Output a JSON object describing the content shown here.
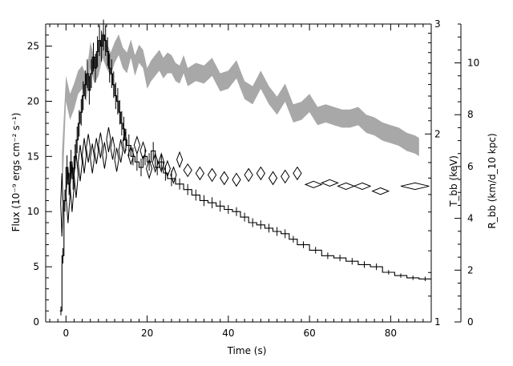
{
  "chart_data": {
    "type": "line",
    "xlabel": "Time (s)",
    "ylabel_left": "Flux (10⁻⁹ ergs cm⁻² s⁻¹)",
    "ylabel_right_1": "T_bb (keV)",
    "ylabel_right_2": "R_bb (km/d_10 kpc)",
    "axes": {
      "x": {
        "lim": [
          -5,
          90
        ],
        "ticks": [
          0,
          20,
          40,
          60,
          80
        ],
        "minor_step": 2
      },
      "y_flux": {
        "lim": [
          0,
          27
        ],
        "ticks": [
          0,
          5,
          10,
          15,
          20,
          25
        ],
        "minor_step": 1
      },
      "y_kT": {
        "lim": [
          1,
          3
        ],
        "ticks": [
          1,
          2,
          3
        ],
        "scale": "log"
      },
      "y_R": {
        "lim": [
          0,
          11.5
        ],
        "ticks": [
          0,
          2,
          4,
          6,
          8,
          10
        ],
        "minor_step": 0.5
      }
    },
    "series": [
      {
        "display": "stepped histogram with vertical error bars",
        "axis": "flux",
        "x": [
          -1.5,
          -1.0,
          -0.5,
          0.0,
          0.5,
          1.0,
          1.5,
          2.0,
          2.5,
          3.0,
          3.5,
          4.0,
          4.5,
          5.0,
          5.5,
          6.0,
          6.5,
          7.0,
          7.5,
          8.0,
          8.5,
          9.0,
          9.5,
          10.0,
          10.5,
          11.0,
          11.5,
          12.0,
          12.5,
          13.0,
          13.5,
          14.0,
          14.5,
          15.0,
          16.0,
          17.0,
          18.0,
          19.0,
          20.0,
          21.0,
          22.0,
          23.0,
          24.0,
          25.0,
          27.0,
          29.0,
          31.0,
          33.0,
          35.0,
          37.0,
          39.0,
          41.0,
          43.0,
          45.0,
          47.0,
          49.0,
          51.0,
          53.0,
          55.0,
          57.0,
          60.0,
          63.0,
          66.0,
          69.0,
          72.0,
          75.0,
          78.0,
          81.0,
          84.0,
          87.0
        ],
        "y": [
          1.0,
          6.0,
          11.0,
          14.0,
          12.5,
          14.5,
          13.0,
          15.0,
          16.5,
          18.0,
          19.0,
          20.5,
          21.5,
          22.5,
          21.0,
          22.5,
          24.0,
          23.0,
          24.5,
          25.5,
          25.0,
          26.0,
          25.5,
          24.5,
          23.0,
          22.5,
          21.5,
          20.5,
          20.0,
          19.0,
          18.0,
          17.5,
          16.5,
          16.0,
          15.0,
          14.5,
          14.0,
          15.0,
          14.5,
          15.5,
          14.0,
          14.5,
          13.5,
          13.0,
          12.5,
          12.0,
          11.5,
          11.0,
          10.8,
          10.5,
          10.2,
          10.0,
          9.5,
          9.0,
          8.8,
          8.5,
          8.2,
          8.0,
          7.5,
          7.0,
          6.5,
          6.0,
          5.8,
          5.5,
          5.2,
          5.0,
          4.5,
          4.2,
          4.0,
          3.9
        ],
        "yerr": [
          0.4,
          0.7,
          1.0,
          1.1,
          1.0,
          1.1,
          1.0,
          1.1,
          1.2,
          1.2,
          1.2,
          1.3,
          1.3,
          1.3,
          1.3,
          1.3,
          1.3,
          1.3,
          1.4,
          1.4,
          1.4,
          1.4,
          1.4,
          1.3,
          1.3,
          1.3,
          1.2,
          1.2,
          1.2,
          1.1,
          1.1,
          1.1,
          1.0,
          1.0,
          0.8,
          0.8,
          0.8,
          0.8,
          0.8,
          0.8,
          0.7,
          0.7,
          0.7,
          0.7,
          0.5,
          0.5,
          0.5,
          0.5,
          0.5,
          0.5,
          0.4,
          0.4,
          0.4,
          0.4,
          0.4,
          0.4,
          0.4,
          0.4,
          0.3,
          0.3,
          0.3,
          0.3,
          0.3,
          0.3,
          0.3,
          0.3,
          0.2,
          0.2,
          0.2,
          0.2
        ]
      },
      {
        "display": "open diamonds (x and y error extents)",
        "axis": "kT",
        "x": [
          -1.0,
          0.5,
          1.5,
          2.5,
          3.5,
          4.5,
          5.5,
          6.5,
          7.5,
          8.5,
          9.5,
          10.5,
          11.5,
          12.5,
          13.5,
          14.5,
          16.0,
          17.5,
          19.0,
          20.5,
          22.0,
          23.5,
          25.0,
          26.5,
          28.0,
          30.0,
          33.0,
          36.0,
          39.0,
          42.0,
          45.0,
          48.0,
          51.0,
          54.0,
          57.0,
          61.0,
          65.0,
          69.0,
          73.0,
          77.5,
          86.0
        ],
        "xerr": [
          0.3,
          0.5,
          0.5,
          0.5,
          0.5,
          0.5,
          0.5,
          0.5,
          0.5,
          0.5,
          0.5,
          0.5,
          0.5,
          0.5,
          0.5,
          0.5,
          0.7,
          0.7,
          0.7,
          0.7,
          0.7,
          0.7,
          0.7,
          0.7,
          0.7,
          1.0,
          1.0,
          1.0,
          1.0,
          1.0,
          1.0,
          1.0,
          1.0,
          1.0,
          1.0,
          2.0,
          2.0,
          2.0,
          2.0,
          2.0,
          3.5
        ],
        "y": [
          1.55,
          1.6,
          1.65,
          1.72,
          1.8,
          1.85,
          1.9,
          1.83,
          1.88,
          1.92,
          1.85,
          1.96,
          1.9,
          1.82,
          1.88,
          1.94,
          1.85,
          1.92,
          1.88,
          1.76,
          1.8,
          1.8,
          1.76,
          1.72,
          1.82,
          1.75,
          1.73,
          1.72,
          1.7,
          1.69,
          1.72,
          1.73,
          1.7,
          1.71,
          1.73,
          1.66,
          1.67,
          1.65,
          1.65,
          1.62,
          1.65
        ],
        "yerr": [
          0.18,
          0.16,
          0.15,
          0.14,
          0.12,
          0.12,
          0.1,
          0.1,
          0.09,
          0.09,
          0.09,
          0.09,
          0.08,
          0.08,
          0.08,
          0.08,
          0.06,
          0.06,
          0.06,
          0.06,
          0.06,
          0.06,
          0.05,
          0.05,
          0.05,
          0.04,
          0.04,
          0.04,
          0.04,
          0.04,
          0.04,
          0.04,
          0.04,
          0.04,
          0.04,
          0.02,
          0.02,
          0.02,
          0.02,
          0.02,
          0.02
        ]
      },
      {
        "display": "gray filled band (lower and upper bounds)",
        "axis": "R",
        "x": [
          -1.0,
          0.0,
          1.0,
          2.0,
          3.0,
          4.0,
          5.0,
          6.0,
          7.0,
          8.0,
          9.0,
          10.0,
          11.0,
          12.0,
          13.0,
          14.0,
          15.0,
          16.0,
          17.0,
          18.0,
          19.0,
          20.0,
          21.0,
          22.0,
          23.0,
          24.0,
          25.0,
          26.0,
          27.0,
          28.0,
          29.0,
          30.0,
          32.0,
          34.0,
          36.0,
          38.0,
          40.0,
          42.0,
          44.0,
          46.0,
          48.0,
          50.0,
          52.0,
          54.0,
          56.0,
          58.0,
          60.0,
          62.0,
          64.0,
          66.0,
          68.0,
          70.0,
          72.0,
          74.0,
          76.0,
          78.0,
          80.0,
          82.0,
          84.0,
          86.0,
          87.0
        ],
        "lower": [
          4.5,
          8.5,
          7.8,
          8.2,
          8.8,
          9.0,
          8.5,
          9.8,
          9.2,
          9.5,
          10.2,
          9.8,
          9.5,
          10.0,
          10.3,
          9.8,
          9.6,
          10.2,
          9.5,
          10.0,
          9.8,
          9.0,
          9.3,
          9.5,
          9.7,
          9.4,
          9.6,
          9.6,
          9.3,
          9.2,
          9.6,
          9.1,
          9.3,
          9.2,
          9.5,
          8.9,
          9.0,
          9.4,
          8.6,
          8.4,
          9.0,
          8.4,
          8.0,
          8.5,
          7.7,
          7.8,
          8.1,
          7.6,
          7.7,
          7.6,
          7.5,
          7.5,
          7.6,
          7.3,
          7.2,
          7.0,
          6.9,
          6.8,
          6.6,
          6.5,
          6.4
        ],
        "upper": [
          6.5,
          9.5,
          8.8,
          9.2,
          9.7,
          9.9,
          9.5,
          10.8,
          10.2,
          10.5,
          11.2,
          10.8,
          10.4,
          10.8,
          11.1,
          10.6,
          10.4,
          10.9,
          10.3,
          10.7,
          10.5,
          9.8,
          10.1,
          10.3,
          10.5,
          10.2,
          10.4,
          10.3,
          10.0,
          9.9,
          10.3,
          9.8,
          10.0,
          9.9,
          10.2,
          9.6,
          9.7,
          10.1,
          9.3,
          9.1,
          9.7,
          9.1,
          8.7,
          9.2,
          8.4,
          8.5,
          8.8,
          8.3,
          8.4,
          8.3,
          8.2,
          8.2,
          8.3,
          8.0,
          7.9,
          7.7,
          7.6,
          7.5,
          7.3,
          7.2,
          7.1
        ]
      }
    ],
    "colors": {
      "line": "#000000",
      "band": "#a8a8a8",
      "background": "#ffffff"
    }
  }
}
